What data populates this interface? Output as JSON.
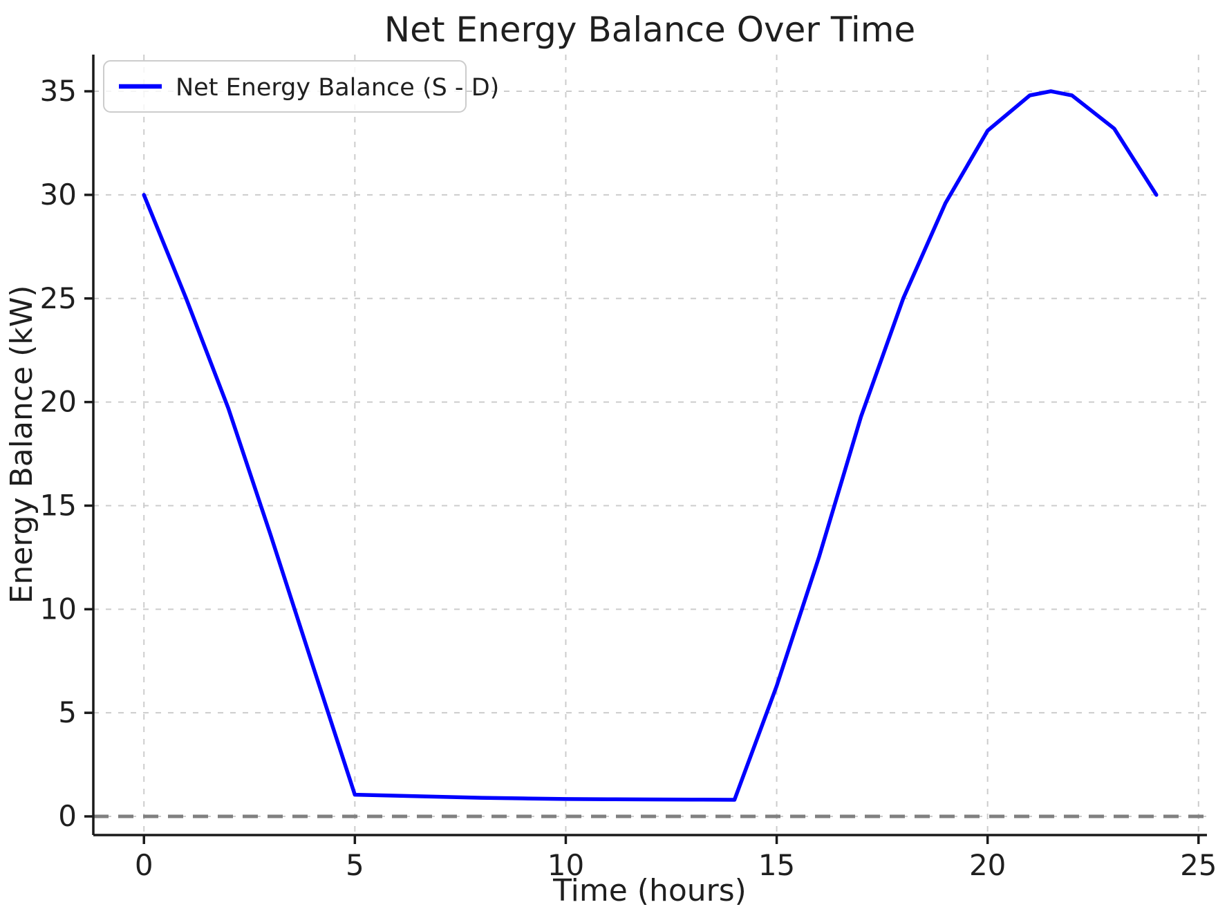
{
  "chart_data": {
    "type": "line",
    "title": "Net Energy Balance Over Time",
    "xlabel": "Time (hours)",
    "ylabel": "Energy Balance (kW)",
    "xlim": [
      -1.2,
      25.2
    ],
    "ylim": [
      -0.9,
      36.77
    ],
    "x_ticks": [
      0,
      5,
      10,
      15,
      20,
      25
    ],
    "y_ticks": [
      0,
      5,
      10,
      15,
      20,
      25,
      30,
      35
    ],
    "grid": "on",
    "grid_style": "dashed",
    "legend": {
      "position": "upper left",
      "entries": [
        {
          "label": "Net Energy Balance (S - D)",
          "color": "#0000ff"
        }
      ]
    },
    "series": [
      {
        "name": "Net Energy Balance (S - D)",
        "color": "#0000ff",
        "x": [
          0,
          1,
          2,
          3,
          4,
          5,
          6,
          7,
          8,
          9,
          10,
          11,
          12,
          13,
          14,
          15,
          16,
          17,
          18,
          19,
          20,
          21,
          21.5,
          22,
          23,
          24
        ],
        "y": [
          30,
          25,
          19.7,
          13.6,
          7.3,
          1.05,
          1.0,
          0.95,
          0.9,
          0.87,
          0.84,
          0.83,
          0.82,
          0.81,
          0.8,
          6.3,
          12.5,
          19.3,
          25.0,
          29.6,
          33.1,
          34.8,
          35.0,
          34.8,
          33.2,
          30
        ]
      }
    ],
    "annotations": [
      {
        "type": "hline",
        "y": 0,
        "color": "#808080",
        "style": "dashed"
      }
    ],
    "colors": {
      "line": "#0000ff",
      "zero_line": "#808080",
      "grid": "#cccccc",
      "text": "#1f1f1f",
      "spine": "#1a1a1a",
      "legend_border": "#cccccc",
      "background": "#ffffff"
    }
  }
}
